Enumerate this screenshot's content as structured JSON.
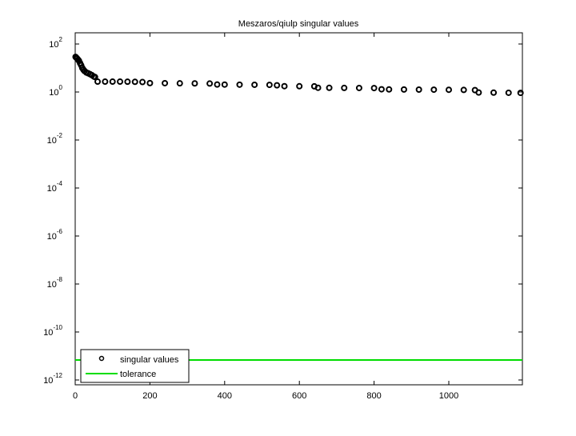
{
  "chart_data": {
    "type": "scatter",
    "title": "Meszaros/qiulp singular values",
    "log_y": true,
    "legend": "lower left",
    "xlim": [
      0,
      1197
    ],
    "xticks": [
      0,
      200,
      400,
      600,
      800,
      1000
    ],
    "ylim": [
      6.3e-13,
      293
    ],
    "yticks": [
      {
        "value": 100,
        "label": "10^2"
      },
      {
        "value": 1,
        "label": "10^0"
      },
      {
        "value": 0.01,
        "label": "10^-2"
      },
      {
        "value": 0.0001,
        "label": "10^-4"
      },
      {
        "value": 1e-06,
        "label": "10^-6"
      },
      {
        "value": 1e-08,
        "label": "10^-8"
      },
      {
        "value": 1e-10,
        "label": "10^-10"
      },
      {
        "value": 1e-12,
        "label": "10^-12"
      }
    ],
    "series": [
      {
        "name": "singular values",
        "color": "#000000",
        "marker": "circle",
        "x": [
          1,
          3,
          5,
          8,
          10,
          13,
          16,
          19,
          22,
          25,
          30,
          35,
          40,
          45,
          50,
          53,
          60,
          80,
          100,
          120,
          140,
          160,
          180,
          200,
          240,
          280,
          320,
          360,
          380,
          400,
          440,
          480,
          520,
          540,
          560,
          600,
          640,
          650,
          680,
          720,
          760,
          800,
          820,
          840,
          880,
          920,
          960,
          1000,
          1040,
          1070,
          1080,
          1120,
          1160,
          1192
        ],
        "values": [
          29,
          27,
          25,
          22,
          20,
          16,
          13,
          10,
          8.5,
          7.5,
          6.5,
          6,
          5.5,
          5,
          4.4,
          4.2,
          2.7,
          2.7,
          2.7,
          2.7,
          2.68,
          2.65,
          2.6,
          2.35,
          2.33,
          2.3,
          2.28,
          2.25,
          2.05,
          2.04,
          2.02,
          2,
          1.98,
          1.9,
          1.75,
          1.74,
          1.72,
          1.5,
          1.49,
          1.48,
          1.47,
          1.46,
          1.3,
          1.28,
          1.27,
          1.26,
          1.25,
          1.24,
          1.22,
          1.2,
          0.95,
          0.94,
          0.93,
          0.92
        ]
      },
      {
        "name": "tolerance",
        "color": "#00dd00",
        "marker": "line",
        "x": [
          0,
          1197
        ],
        "values": [
          6.8e-12,
          6.8e-12
        ]
      }
    ]
  }
}
